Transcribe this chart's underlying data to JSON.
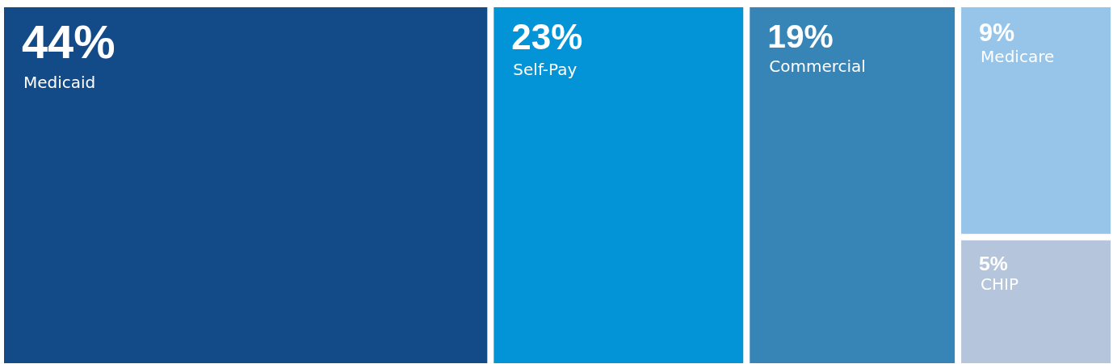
{
  "chart_data": {
    "type": "other",
    "categories": [
      "Medicaid",
      "Self-Pay",
      "Commercial",
      "Medicare",
      "CHIP"
    ],
    "values": [
      44,
      23,
      19,
      9,
      5
    ],
    "value_labels": [
      "44%",
      "23%",
      "19%",
      "9%",
      "5%"
    ],
    "colors": [
      "#134a88",
      "#0394d8",
      "#3784b6",
      "#97c5ea",
      "#b5c5dc"
    ]
  }
}
